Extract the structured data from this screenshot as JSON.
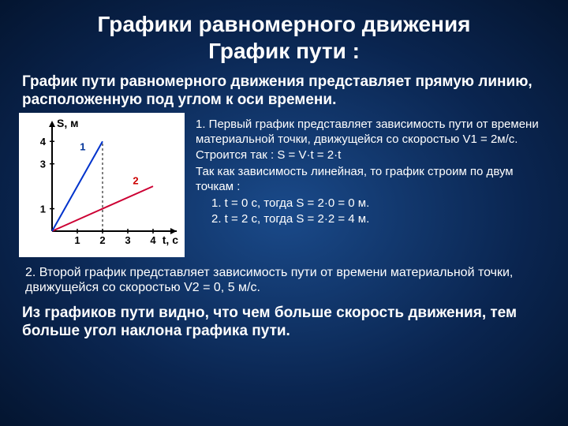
{
  "title_line1": "Графики   равномерного движения",
  "title_line2": "График пути :",
  "lead": "График пути равномерного движения представляет прямую линию, расположенную  под углом к оси времени.",
  "chart": {
    "type": "line",
    "background_color": "#ffffff",
    "axis_color": "#000000",
    "y_label": "S, м",
    "x_label": "t, с",
    "label_fontsize": 14,
    "label_fontweight": "bold",
    "tick_fontsize": 13,
    "tick_fontweight": "bold",
    "xlim": [
      0,
      4.5
    ],
    "ylim": [
      0,
      4.5
    ],
    "x_ticks": [
      1,
      2,
      3,
      4
    ],
    "y_ticks": [
      1,
      3,
      4
    ],
    "line1": {
      "label": "1",
      "label_color": "#003399",
      "color": "#0033cc",
      "width": 2,
      "points": [
        [
          0,
          0
        ],
        [
          2,
          4
        ]
      ]
    },
    "line2": {
      "label": "2",
      "label_color": "#cc0000",
      "color": "#cc0033",
      "width": 2,
      "points": [
        [
          0,
          0
        ],
        [
          4,
          2
        ]
      ]
    }
  },
  "explain": {
    "p1": "1.  Первый график представляет зависимость  пути  от времени материальной точки, движущейся со скоростью   V1 = 2м/с.",
    "p2": "Строится так :      S = V·t = 2·t",
    "p3": "Так как зависимость линейная, то график строим по двум точкам :",
    "p4a": "1.   t = 0 с, тогда    S = 2·0 = 0 м.",
    "p4b": "2.   t = 2 с, тогда    S = 2·2 = 4 м."
  },
  "below": "2. Второй график представляет зависимость  пути  от времени материальной точки,  движущейся со скоростью   V2 = 0, 5 м/с.",
  "conclusion": " Из графиков пути видно, что чем больше скорость движения, тем больше угол наклона графика пути."
}
